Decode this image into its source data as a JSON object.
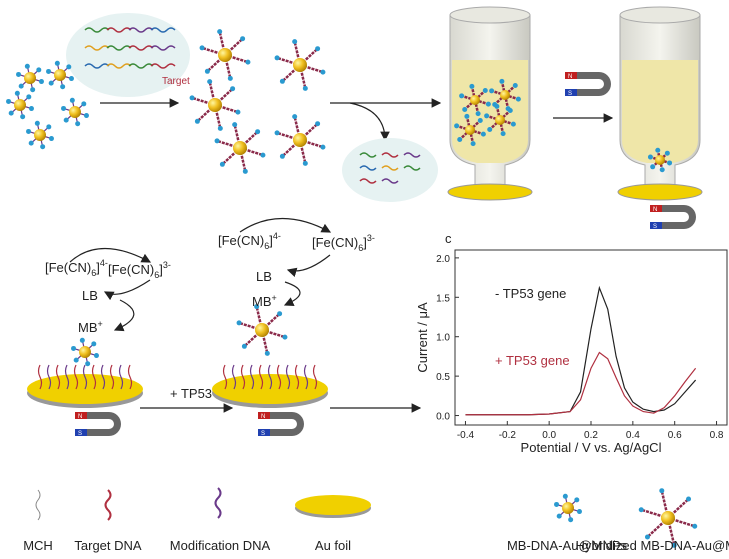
{
  "scheme": {
    "target_label": "Target",
    "magnet": {
      "s": "S",
      "n": "N"
    },
    "ferricyanide_4": {
      "open": "[Fe(CN)",
      "sub": "6",
      "close": "]",
      "sup": "4-"
    },
    "ferricyanide_3": {
      "open": "[Fe(CN)",
      "sub": "6",
      "close": "]",
      "sup": "3-"
    },
    "lb": "LB",
    "mb": {
      "base": "MB",
      "sup": "+"
    },
    "step_label": "+ TP53"
  },
  "chart_data": {
    "type": "line",
    "panel_label": "c",
    "xlabel": "Potential / V vs. Ag/AgCl",
    "ylabel": "Current / μA",
    "xlim": [
      -0.45,
      0.85
    ],
    "ylim": [
      -0.12,
      2.1
    ],
    "xticks": [
      -0.4,
      -0.2,
      {
        "value": 0,
        "label": "0.0"
      },
      0.2,
      0.4,
      0.6,
      0.8
    ],
    "yticks": [
      {
        "value": 0,
        "label": "0.0"
      },
      0.5,
      {
        "value": 1,
        "label": "1.0"
      },
      1.5,
      {
        "value": 2,
        "label": "2.0"
      }
    ],
    "x": [
      -0.4,
      -0.3,
      -0.2,
      -0.1,
      0.0,
      0.1,
      0.15,
      0.2,
      0.24,
      0.28,
      0.32,
      0.36,
      0.4,
      0.45,
      0.5,
      0.55,
      0.6,
      0.65,
      0.7
    ],
    "series": [
      {
        "name": "- TP53 gene",
        "color": "#222222",
        "values": [
          0.01,
          0.01,
          0.01,
          0.01,
          0.02,
          0.05,
          0.3,
          1.1,
          1.62,
          1.35,
          0.75,
          0.35,
          0.17,
          0.08,
          0.05,
          0.07,
          0.15,
          0.3,
          0.45
        ]
      },
      {
        "name": "+ TP53 gene",
        "color": "#b03040",
        "values": [
          0.01,
          0.01,
          0.01,
          0.01,
          0.02,
          0.05,
          0.2,
          0.6,
          0.8,
          0.72,
          0.48,
          0.25,
          0.12,
          0.05,
          0.03,
          0.1,
          0.25,
          0.43,
          0.6
        ]
      }
    ]
  },
  "legend": [
    "MCH",
    "Target DNA",
    "Modification DNA",
    "Au foil",
    "MB-DNA-Au@MNPs",
    "Hybridized MB-DNA-Au@MNPs"
  ]
}
